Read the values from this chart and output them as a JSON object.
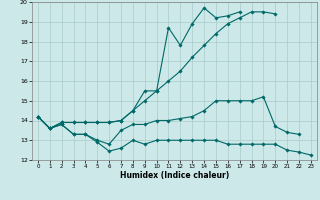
{
  "xlabel": "Humidex (Indice chaleur)",
  "bg_color": "#cce8e8",
  "grid_color": "#aacccc",
  "line_color": "#006868",
  "xlim": [
    -0.5,
    23.5
  ],
  "ylim": [
    12,
    20
  ],
  "yticks": [
    12,
    13,
    14,
    15,
    16,
    17,
    18,
    19,
    20
  ],
  "xticks": [
    0,
    1,
    2,
    3,
    4,
    5,
    6,
    7,
    8,
    9,
    10,
    11,
    12,
    13,
    14,
    15,
    16,
    17,
    18,
    19,
    20,
    21,
    22,
    23
  ],
  "lines": [
    {
      "x": [
        0,
        1,
        2,
        3,
        4,
        5,
        6,
        7,
        8,
        9,
        10,
        11,
        12,
        13,
        14,
        15,
        16,
        17,
        18,
        19,
        20,
        21,
        22,
        23
      ],
      "y": [
        14.2,
        13.6,
        13.8,
        13.3,
        13.3,
        12.9,
        12.45,
        12.6,
        13.0,
        12.8,
        13.0,
        13.0,
        13.0,
        13.0,
        13.0,
        13.0,
        12.8,
        12.8,
        12.8,
        12.8,
        12.8,
        12.5,
        12.4,
        12.25
      ]
    },
    {
      "x": [
        0,
        1,
        2,
        3,
        4,
        5,
        6,
        7,
        8,
        9,
        10,
        11,
        12,
        13,
        14,
        15,
        16,
        17,
        18,
        19,
        20,
        21,
        22
      ],
      "y": [
        14.2,
        13.6,
        13.8,
        13.3,
        13.3,
        13.0,
        12.8,
        13.5,
        13.8,
        13.8,
        14.0,
        14.0,
        14.1,
        14.2,
        14.5,
        15.0,
        15.0,
        15.0,
        15.0,
        15.2,
        13.7,
        13.4,
        13.3
      ]
    },
    {
      "x": [
        0,
        1,
        2,
        3,
        4,
        5,
        6,
        7,
        8,
        9,
        10,
        11,
        12,
        13,
        14,
        15,
        16,
        17,
        18,
        19,
        20
      ],
      "y": [
        14.2,
        13.6,
        13.9,
        13.9,
        13.9,
        13.9,
        13.9,
        14.0,
        14.5,
        15.0,
        15.5,
        16.0,
        16.5,
        17.2,
        17.8,
        18.4,
        18.9,
        19.2,
        19.5,
        19.5,
        19.4
      ]
    },
    {
      "x": [
        0,
        1,
        2,
        3,
        4,
        5,
        6,
        7,
        8,
        9,
        10,
        11,
        12,
        13,
        14,
        15,
        16,
        17
      ],
      "y": [
        14.2,
        13.6,
        13.9,
        13.9,
        13.9,
        13.9,
        13.9,
        14.0,
        14.5,
        15.5,
        15.5,
        18.7,
        17.8,
        18.9,
        19.7,
        19.2,
        19.3,
        19.5
      ]
    }
  ]
}
